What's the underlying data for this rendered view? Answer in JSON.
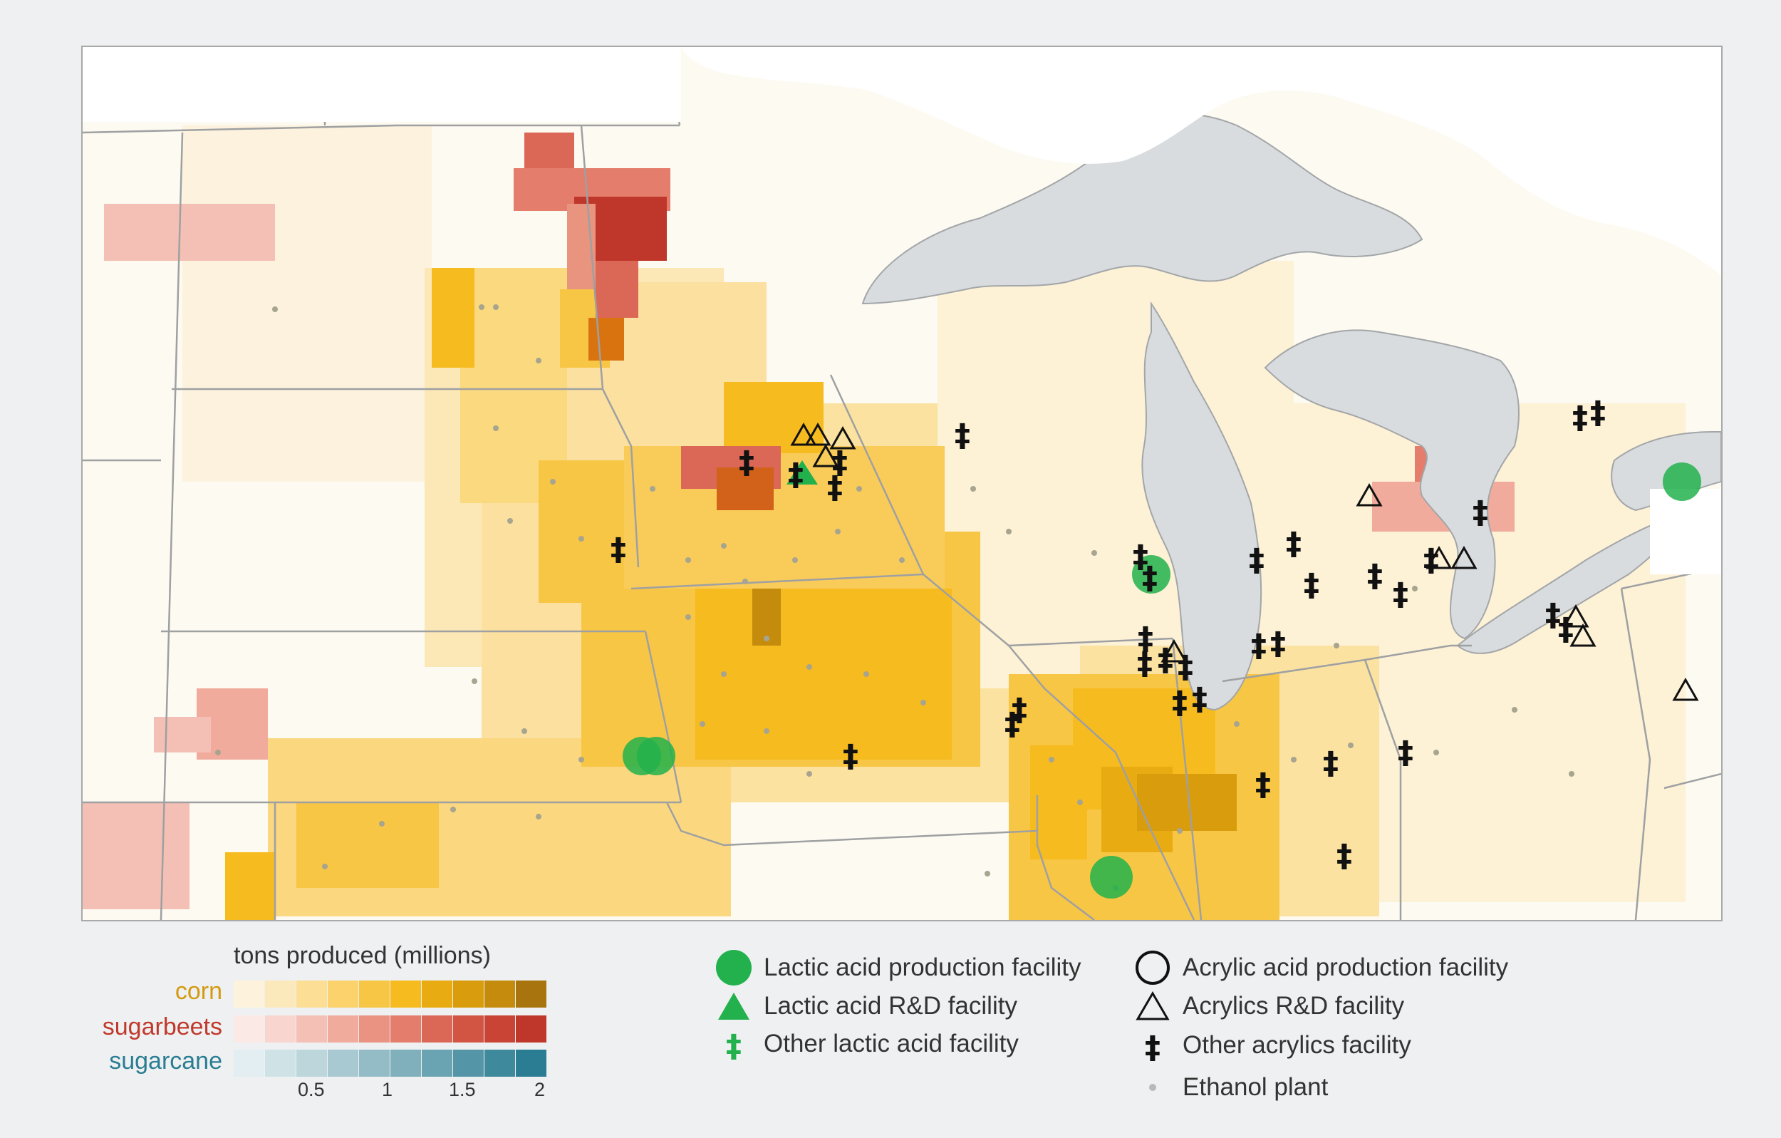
{
  "colors": {
    "corn_ramp": [
      "#fdf3dc",
      "#fce9bb",
      "#fcdf95",
      "#fbd26c",
      "#f8c645",
      "#f6bb1e",
      "#e8ab12",
      "#d89c0d",
      "#c58b0d",
      "#a8740e"
    ],
    "sugarbeet_ramp": [
      "#fbe9e6",
      "#f8d5cf",
      "#f4c0b5",
      "#f0ab9c",
      "#ea9382",
      "#e47d6b",
      "#db6756",
      "#d25544",
      "#c94434",
      "#bf372a"
    ],
    "sugarcane_ramp": [
      "#e2eef1",
      "#cfe3e7",
      "#bcd6dc",
      "#a8c9d1",
      "#94bcc6",
      "#7fb0bc",
      "#6aa3b1",
      "#5496a7",
      "#3f899c",
      "#2a7d92"
    ],
    "lactic_green": "#22b14c",
    "lake": "#d9dcde",
    "border": "#9ea0a2",
    "ethanol_dot": "#a7a48f"
  },
  "legend": {
    "ramp_title": "tons produced (millions)",
    "crops": [
      {
        "label": "corn",
        "color": "#d49a10"
      },
      {
        "label": "sugarbeets",
        "color": "#c0392b"
      },
      {
        "label": "sugarcane",
        "color": "#2a7d92"
      }
    ],
    "ticks": [
      "0.5",
      "1",
      "1.5",
      "2"
    ],
    "items": [
      {
        "icon": "green-circle-icon",
        "label": "Lactic acid production facility"
      },
      {
        "icon": "green-triangle-icon",
        "label": "Lactic acid R&D facility"
      },
      {
        "icon": "green-double-dagger-icon",
        "label": "Other lactic acid facility"
      },
      {
        "icon": "open-circle-icon",
        "label": "Acrylic acid production facility"
      },
      {
        "icon": "open-triangle-icon",
        "label": "Acrylics R&D facility"
      },
      {
        "icon": "black-double-dagger-icon",
        "label": "Other acrylics facility"
      },
      {
        "icon": "gray-dot-icon",
        "label": "Ethanol plant"
      }
    ]
  }
}
